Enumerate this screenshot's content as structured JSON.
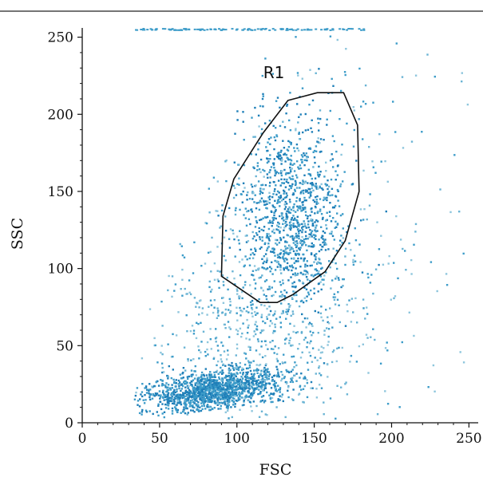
{
  "chart_data": {
    "type": "scatter",
    "xlabel": "FSC",
    "ylabel": "SSC",
    "xlim": [
      0,
      256
    ],
    "ylim": [
      0,
      256
    ],
    "x_ticks": [
      0,
      50,
      100,
      150,
      200,
      250
    ],
    "y_ticks": [
      0,
      50,
      100,
      150,
      200,
      250
    ],
    "grid": false,
    "gate": {
      "label": "R1",
      "vertices": [
        [
          133,
          209
        ],
        [
          152,
          214
        ],
        [
          169,
          214
        ],
        [
          178,
          193
        ],
        [
          179,
          150
        ],
        [
          170,
          118
        ],
        [
          157,
          98
        ],
        [
          136,
          83
        ],
        [
          126,
          78
        ],
        [
          115,
          78
        ],
        [
          90,
          95
        ],
        [
          91,
          134
        ],
        [
          98,
          158
        ],
        [
          117,
          188
        ]
      ]
    },
    "clusters": [
      {
        "cx": 85,
        "cy": 16,
        "sx": 22,
        "sy": 6,
        "n": 1400
      },
      {
        "cx": 135,
        "cy": 135,
        "sx": 17,
        "sy": 32,
        "n": 1000
      },
      {
        "cx": 115,
        "cy": 60,
        "sx": 35,
        "sy": 35,
        "n": 600
      },
      {
        "cx": 130,
        "cy": 130,
        "sx": 60,
        "sy": 70,
        "n": 450
      }
    ],
    "dot_colors": [
      "#8ec6dd",
      "#6ab4d4",
      "#3d9cc9",
      "#1f7fb8"
    ]
  }
}
